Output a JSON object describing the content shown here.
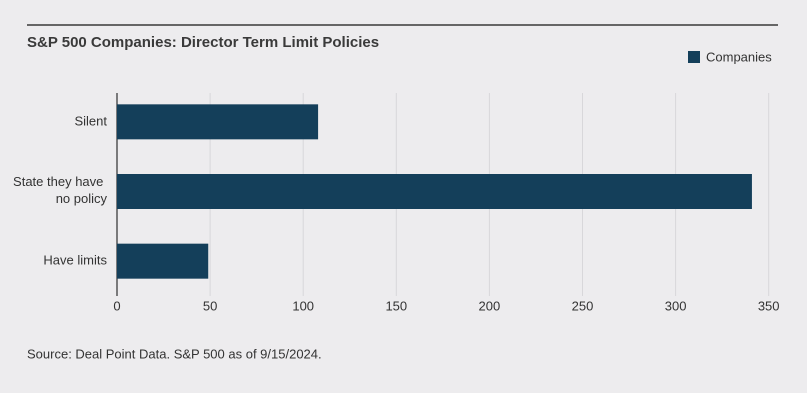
{
  "chart_data": {
    "type": "bar",
    "orientation": "horizontal",
    "title": "S&P 500 Companies: Director Term Limit Policies",
    "categories": [
      "Silent",
      "State they have no policy",
      "Have limits"
    ],
    "series": [
      {
        "name": "Companies",
        "color": "#143f5a",
        "values": [
          108,
          341,
          49
        ]
      }
    ],
    "xlim": [
      0,
      355
    ],
    "xticks": [
      0,
      50,
      100,
      150,
      200,
      250,
      300,
      350
    ],
    "grid": true,
    "legend": "top-right",
    "source": "Source: Deal Point Data. S&P 500 as of 9/15/2024."
  }
}
